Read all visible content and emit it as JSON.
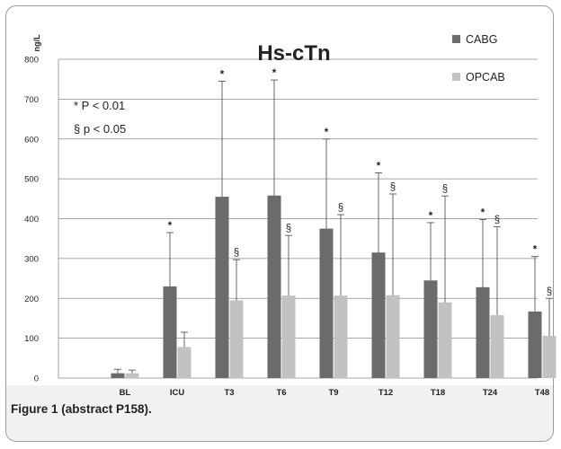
{
  "figure_caption": "Figure 1 (abstract P158).",
  "colors": {
    "CABG": "#6b6b6b",
    "OPCAB": "#c2c2c2",
    "grid": "#8a8a8a",
    "error": "#555555"
  },
  "chart_data": {
    "type": "bar",
    "title": "Hs-cTn",
    "ylabel": "ng/L",
    "xlabel": "",
    "ylim": [
      0,
      800
    ],
    "yticks": [
      0,
      100,
      200,
      300,
      400,
      500,
      600,
      700,
      800
    ],
    "categories": [
      "BL",
      "ICU",
      "T3",
      "T6",
      "T9",
      "T12",
      "T18",
      "T24",
      "T48"
    ],
    "legend_position": "top-right",
    "grid": true,
    "series": [
      {
        "name": "CABG",
        "values": [
          12,
          230,
          455,
          458,
          375,
          315,
          245,
          228,
          167
        ],
        "error_upper": [
          22,
          365,
          745,
          748,
          600,
          515,
          390,
          398,
          305
        ],
        "markers": [
          "",
          "*",
          "*",
          "*",
          "*",
          "*",
          "*",
          "*",
          "*"
        ]
      },
      {
        "name": "OPCAB",
        "values": [
          12,
          78,
          195,
          207,
          207,
          208,
          190,
          158,
          106
        ],
        "error_upper": [
          20,
          115,
          297,
          358,
          410,
          462,
          457,
          380,
          200
        ],
        "markers": [
          "",
          "",
          "§",
          "§",
          "§",
          "§",
          "§",
          "§",
          "§"
        ]
      }
    ],
    "annotations": [
      "* P < 0.01",
      "§ p < 0.05"
    ]
  }
}
